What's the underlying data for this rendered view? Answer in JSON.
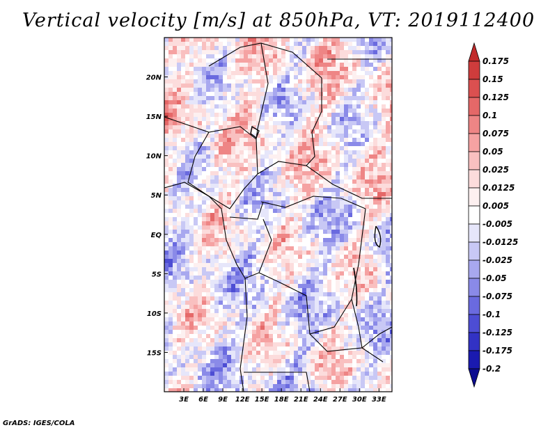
{
  "title": "Vertical velocity [m/s] at 850hPa, VT: 2019112400",
  "credit": "GrADS: IGES/COLA",
  "map": {
    "lon_range_deg": [
      0,
      35
    ],
    "lat_range_deg": [
      -20,
      25
    ],
    "lat_ticks": [
      "20N",
      "15N",
      "10N",
      "5N",
      "EQ",
      "5S",
      "10S",
      "15S"
    ],
    "lon_ticks": [
      "3E",
      "6E",
      "9E",
      "12E",
      "15E",
      "18E",
      "21E",
      "24E",
      "27E",
      "30E",
      "33E"
    ]
  },
  "colorbar": {
    "labels": [
      "0.175",
      "0.15",
      "0.125",
      "0.1",
      "0.075",
      "0.05",
      "0.025",
      "0.0125",
      "0.005",
      "-0.005",
      "-0.0125",
      "-0.025",
      "-0.05",
      "-0.075",
      "-0.1",
      "-0.125",
      "-0.175",
      "-0.2"
    ],
    "colors": [
      "#c22b2b",
      "#cf3c3c",
      "#db5050",
      "#e56868",
      "#ee8585",
      "#f5a2a2",
      "#f9c0c0",
      "#fcdcdc",
      "#fdf0f0",
      "#ffffff",
      "#e6e6fa",
      "#c8c8f5",
      "#a8a8ef",
      "#8a8ae8",
      "#6a6adf",
      "#4d4dd4",
      "#3232c4",
      "#1a1ab0",
      "#0c0c90"
    ]
  }
}
